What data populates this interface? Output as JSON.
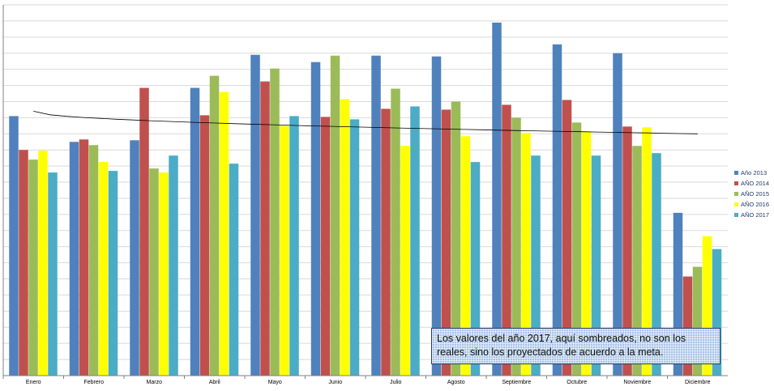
{
  "chart_data": {
    "type": "bar",
    "categories": [
      "Enero",
      "Febrero",
      "Marzo",
      "Abril",
      "Mayo",
      "Junio",
      "Julio",
      "Agosto",
      "Septiembre",
      "Octubre",
      "Noviembre",
      "Diciembre"
    ],
    "series": [
      {
        "name": "Año 2013",
        "color": "#4f81bd",
        "values": [
          322,
          290,
          292,
          357,
          398,
          389,
          397,
          396,
          438,
          411,
          400,
          202
        ]
      },
      {
        "name": "AÑO 2014",
        "color": "#c0504d",
        "values": [
          280,
          293,
          357,
          323,
          365,
          321,
          331,
          330,
          336,
          342,
          309,
          123
        ]
      },
      {
        "name": "AÑO 2015",
        "color": "#9bbb59",
        "values": [
          268,
          286,
          257,
          372,
          381,
          397,
          356,
          340,
          320,
          314,
          285,
          135
        ]
      },
      {
        "name": "AÑO 2016",
        "color": "#ffff00",
        "values": [
          279,
          265,
          252,
          352,
          310,
          343,
          285,
          297,
          301,
          303,
          308,
          173
        ]
      },
      {
        "name": "AÑO 2017",
        "color": "#4bacc6",
        "values": [
          252,
          254,
          273,
          263,
          322,
          318,
          334,
          265,
          273,
          273,
          276,
          157
        ]
      }
    ],
    "trendline": {
      "start": 328,
      "end": 300,
      "color": "#000000"
    },
    "ylim": [
      0,
      460
    ],
    "grid": true,
    "legend_position": "right"
  },
  "annotation": {
    "line1": "Los valores del año 2017, aquí sombreados, no son los",
    "line2": "reales, sino los proyectados de acuerdo a la meta."
  }
}
